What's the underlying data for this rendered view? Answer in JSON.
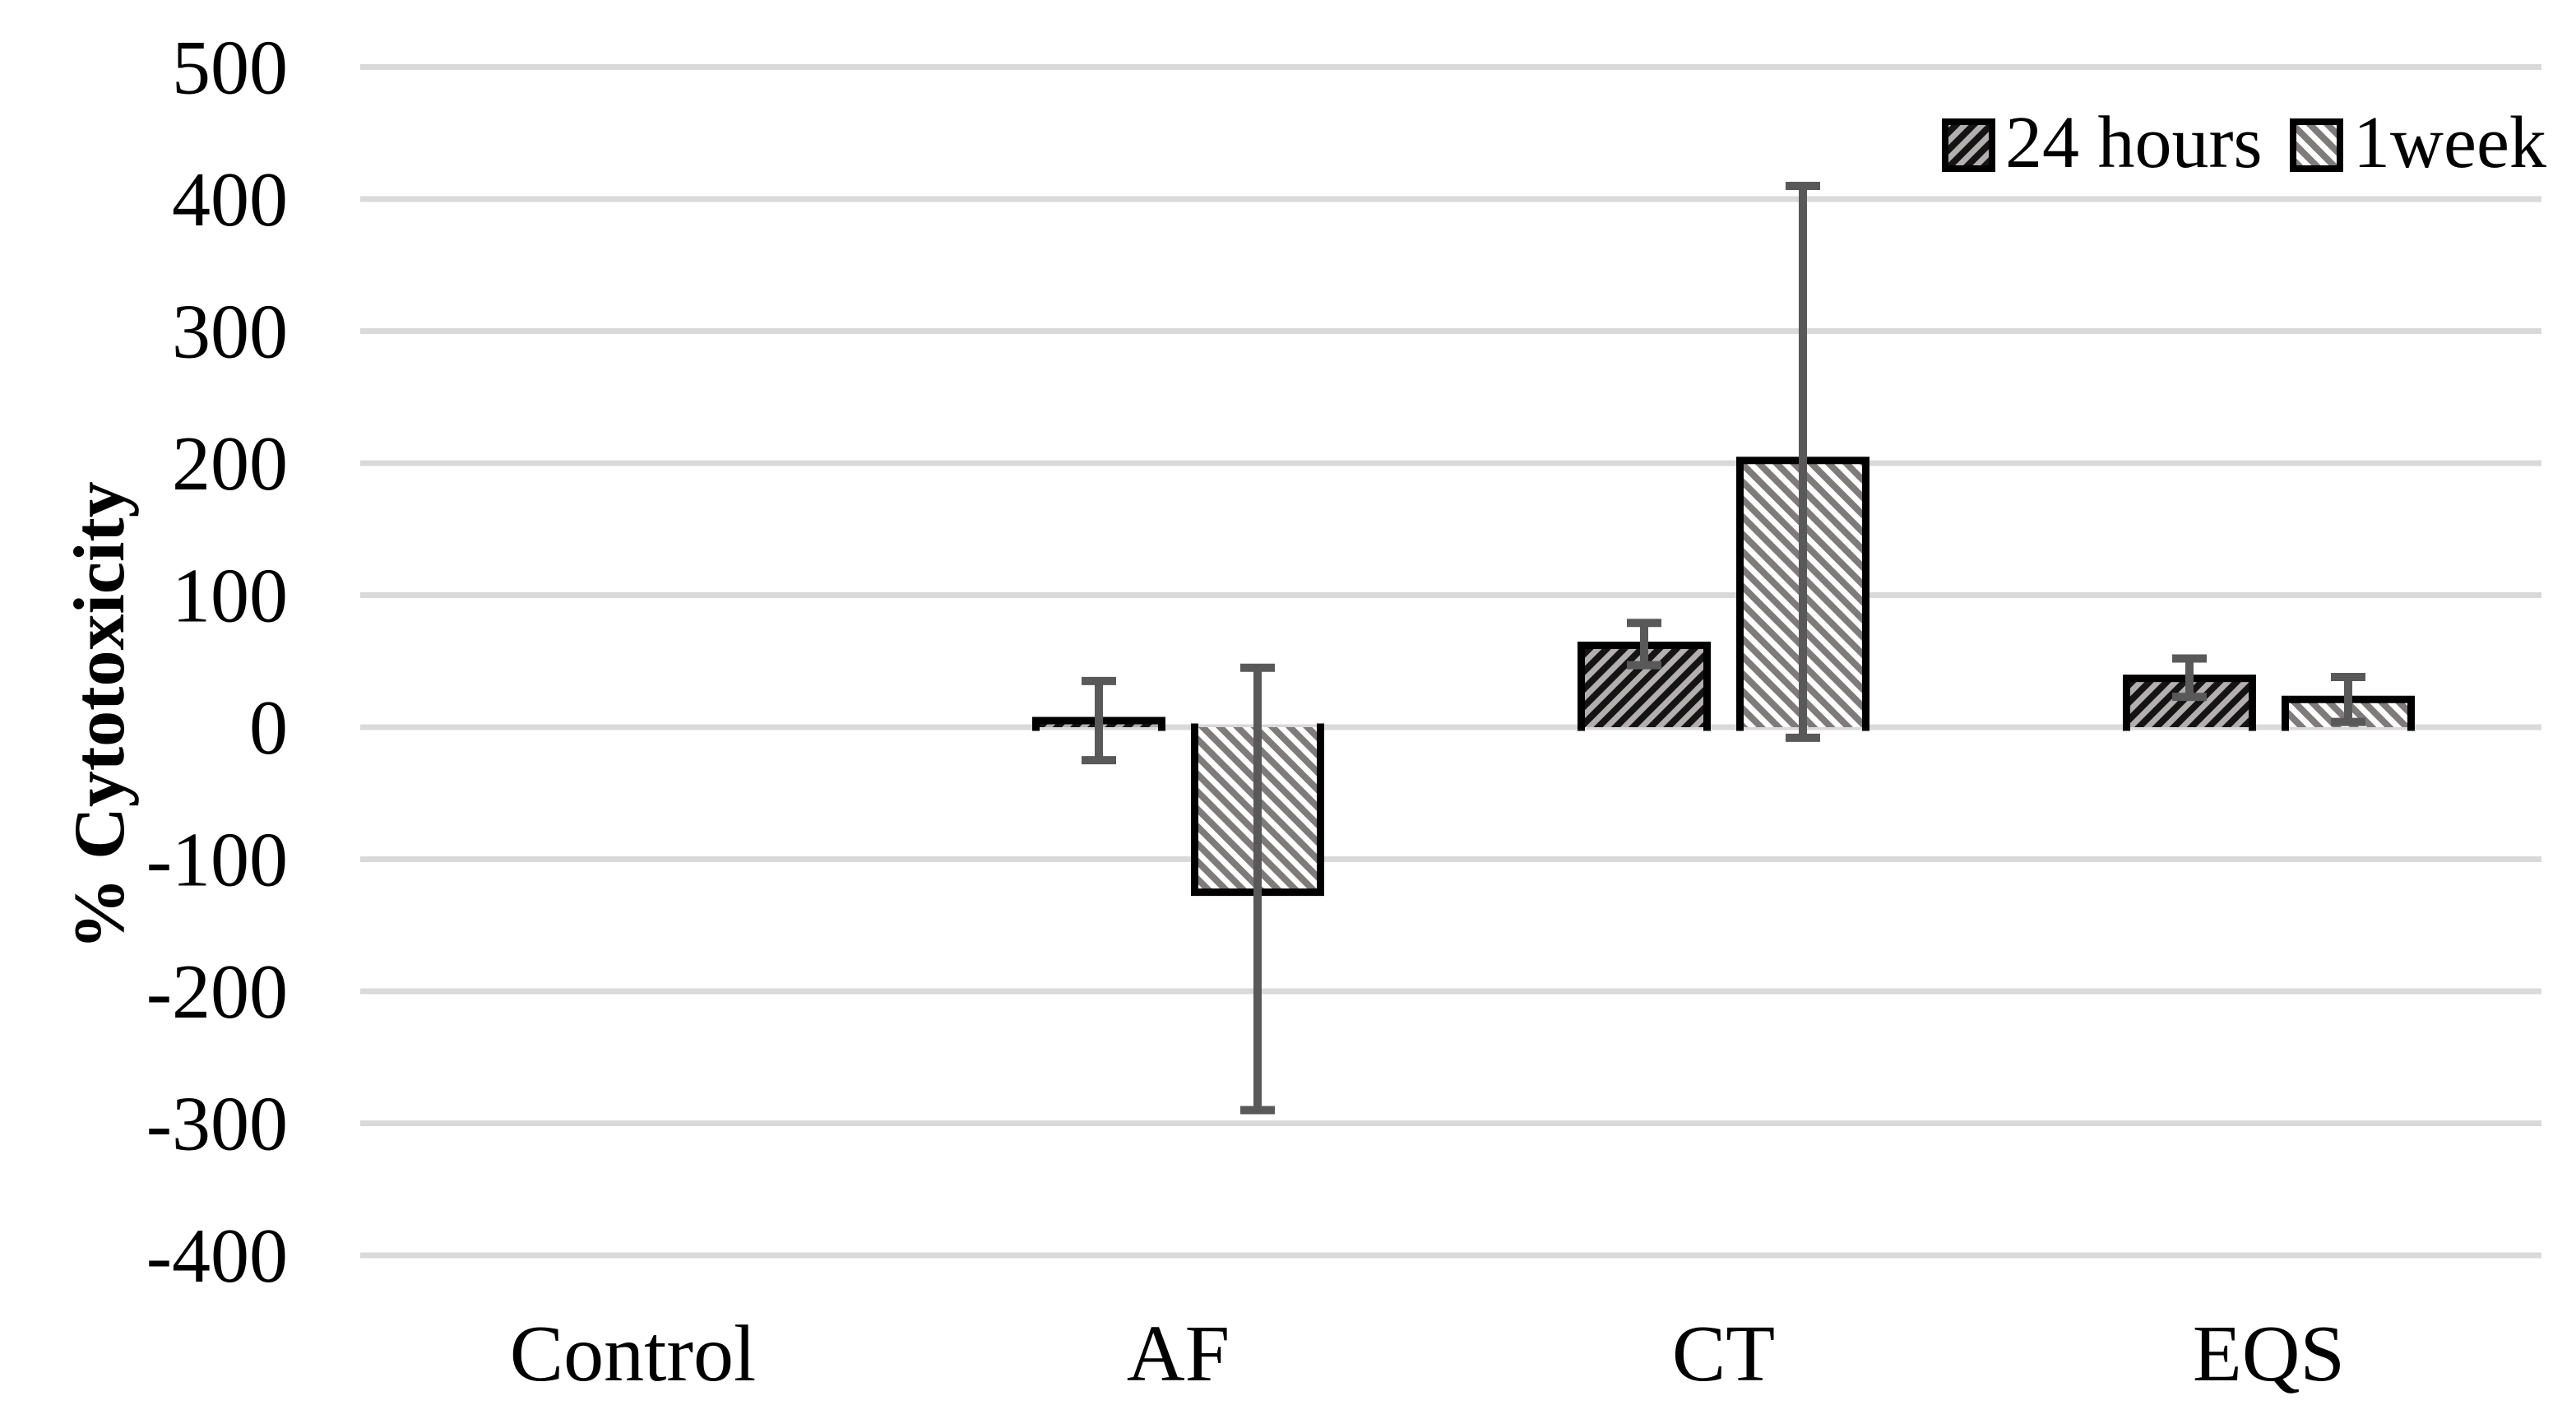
{
  "chart_data": {
    "type": "bar",
    "title": "",
    "xlabel": "",
    "ylabel": "% Cytotoxicity",
    "categories": [
      "Control",
      "AF",
      "CT",
      "EQS"
    ],
    "series": [
      {
        "name": "24 hours",
        "pattern": "forward-diagonal-black-on-gray",
        "values": [
          0,
          5,
          62,
          37
        ],
        "error_up": [
          null,
          30,
          17,
          15
        ],
        "error_down": [
          null,
          30,
          15,
          14
        ]
      },
      {
        "name": "1week",
        "pattern": "back-diagonal-gray-on-white",
        "values": [
          0,
          -125,
          202,
          21
        ],
        "error_up": [
          null,
          170,
          208,
          17
        ],
        "error_down": [
          null,
          165,
          210,
          17
        ]
      }
    ],
    "ylim": [
      -400,
      500
    ],
    "ytick_step": 100,
    "yticks": [
      500,
      400,
      300,
      200,
      100,
      0,
      -100,
      -200,
      -300,
      -400
    ],
    "grid": true,
    "legend_position": "top-right"
  },
  "colors": {
    "background": "#ffffff",
    "gridline": "#d9d9d9",
    "error_bar": "#595959",
    "bar_border": "#000000",
    "hatch_24h_background": "#b3afaf",
    "hatch_24h_stripe": "#141414",
    "hatch_1week_background": "#ffffff",
    "hatch_1week_stripe": "#7f7b7b",
    "text": "#000000"
  }
}
